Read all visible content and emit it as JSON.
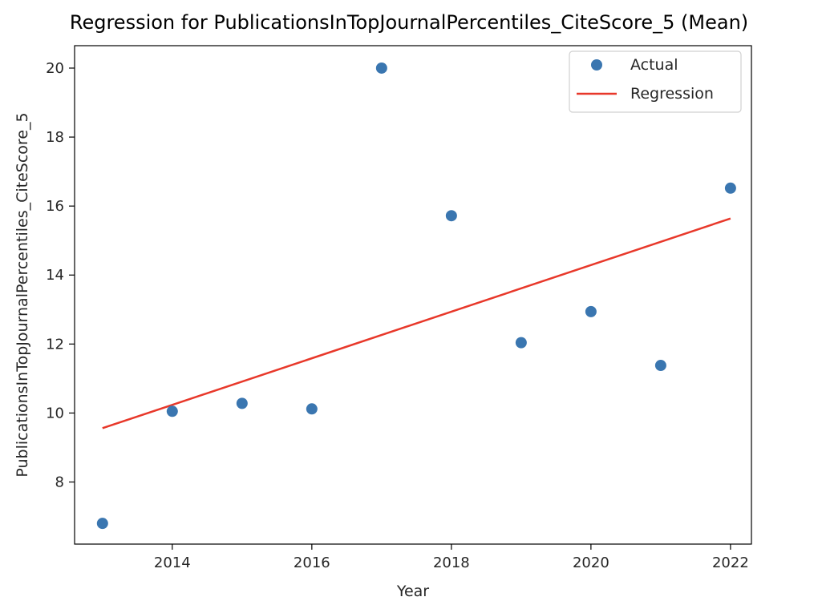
{
  "chart_data": {
    "type": "scatter",
    "title": "Regression for PublicationsInTopJournalPercentiles_CiteScore_5 (Mean)",
    "xlabel": "Year",
    "ylabel": "PublicationsInTopJournalPercentiles_CiteScore_5",
    "xlim": [
      2012.6,
      2022.3
    ],
    "ylim": [
      6.2,
      20.65
    ],
    "xticks": [
      2014,
      2016,
      2018,
      2020,
      2022
    ],
    "yticks": [
      8,
      10,
      12,
      14,
      16,
      18,
      20
    ],
    "grid": false,
    "legend_position": "top-right",
    "series": [
      {
        "name": "Actual",
        "kind": "scatter",
        "color": "#3a76b0",
        "x": [
          2013,
          2014,
          2015,
          2016,
          2017,
          2018,
          2019,
          2020,
          2021,
          2022
        ],
        "y": [
          6.8,
          10.05,
          10.28,
          10.12,
          20.0,
          15.72,
          12.04,
          12.94,
          11.38,
          16.52
        ]
      },
      {
        "name": "Regression",
        "kind": "line",
        "color": "#e8382a",
        "x": [
          2013,
          2022
        ],
        "y": [
          9.56,
          15.64
        ]
      }
    ]
  }
}
